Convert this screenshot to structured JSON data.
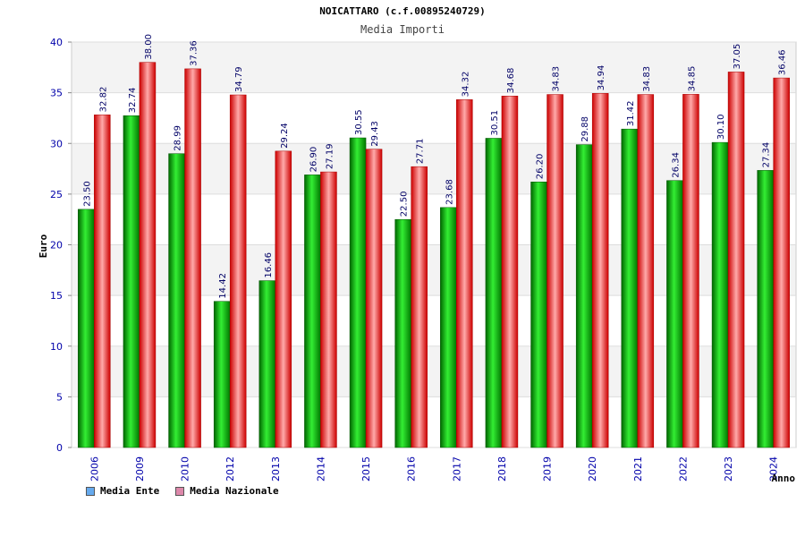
{
  "chart_data": {
    "type": "bar",
    "title": "NOICATTARO (c.f.00895240729)",
    "subtitle": "Media Importi",
    "xlabel": "Anno",
    "ylabel": "Euro",
    "ylim": [
      0,
      40
    ],
    "yticks": [
      "0",
      "5",
      "10",
      "15",
      "20",
      "25",
      "30",
      "35",
      "40"
    ],
    "grid": true,
    "legend_position": "bottom-left",
    "categories": [
      "2006",
      "2009",
      "2010",
      "2012",
      "2013",
      "2014",
      "2015",
      "2016",
      "2017",
      "2018",
      "2019",
      "2020",
      "2021",
      "2022",
      "2023",
      "2024"
    ],
    "series": [
      {
        "name": "Media Ente",
        "color": "#00bb00",
        "legend_color": "#66aaee",
        "values": [
          23.5,
          32.74,
          28.99,
          14.42,
          16.46,
          26.9,
          30.55,
          22.5,
          23.68,
          30.51,
          26.2,
          29.88,
          31.42,
          26.34,
          30.1,
          27.34
        ],
        "labels": [
          "23.50",
          "32.74",
          "28.99",
          "14.42",
          "16.46",
          "26.90",
          "30.55",
          "22.50",
          "23.68",
          "30.51",
          "26.20",
          "29.88",
          "31.42",
          "26.34",
          "30.10",
          "27.34"
        ]
      },
      {
        "name": "Media Nazionale",
        "color": "#ee1111",
        "legend_color": "#dd88aa",
        "values": [
          32.82,
          38.0,
          37.36,
          34.79,
          29.24,
          27.19,
          29.43,
          27.71,
          34.32,
          34.68,
          34.83,
          34.94,
          34.83,
          34.85,
          37.05,
          36.46
        ],
        "labels": [
          "32.82",
          "38.00",
          "37.36",
          "34.79",
          "29.24",
          "27.19",
          "29.43",
          "27.71",
          "34.32",
          "34.68",
          "34.83",
          "34.94",
          "34.83",
          "34.85",
          "37.05",
          "36.46"
        ]
      }
    ]
  }
}
